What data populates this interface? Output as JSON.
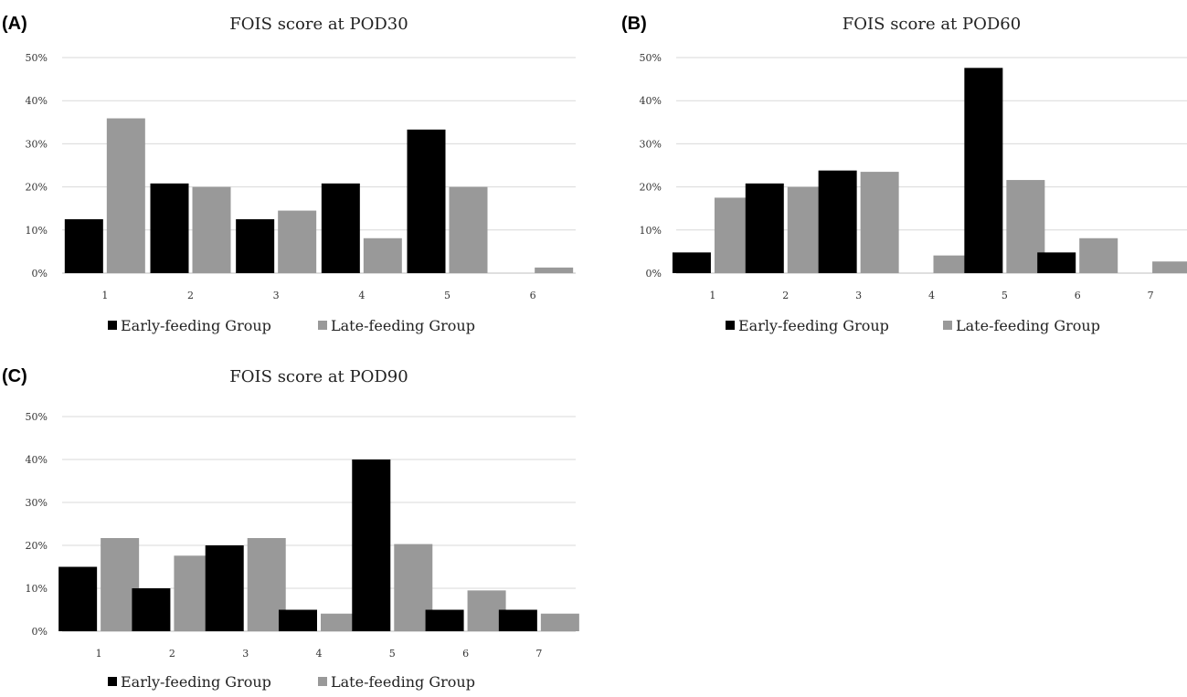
{
  "chart_data": [
    {
      "id": "A",
      "panel_label": "(A)",
      "type": "bar",
      "title": "FOIS score at POD30",
      "categories": [
        "1",
        "2",
        "3",
        "4",
        "5",
        "6"
      ],
      "series": [
        {
          "name": "Early-feeding Group",
          "color": "#000000",
          "values": [
            12.5,
            20.8,
            12.5,
            20.8,
            33.3,
            0
          ]
        },
        {
          "name": "Late-feeding Group",
          "color": "#999999",
          "values": [
            35.9,
            20.0,
            14.5,
            8.1,
            20.0,
            1.3
          ]
        }
      ],
      "ylim": [
        0,
        50
      ],
      "yticks": [
        "0%",
        "10%",
        "20%",
        "30%",
        "40%",
        "50%"
      ],
      "grid": true,
      "legend": "bottom"
    },
    {
      "id": "B",
      "panel_label": "(B)",
      "type": "bar",
      "title": "FOIS score at POD60",
      "categories": [
        "1",
        "2",
        "3",
        "4",
        "5",
        "6",
        "7"
      ],
      "series": [
        {
          "name": "Early-feeding Group",
          "color": "#000000",
          "values": [
            4.8,
            20.8,
            23.8,
            0,
            47.6,
            4.8,
            0
          ]
        },
        {
          "name": "Late-feeding Group",
          "color": "#999999",
          "values": [
            17.5,
            20.0,
            23.5,
            4.1,
            21.6,
            8.1,
            2.7
          ]
        }
      ],
      "ylim": [
        0,
        50
      ],
      "yticks": [
        "0%",
        "10%",
        "20%",
        "30%",
        "40%",
        "50%"
      ],
      "grid": true,
      "legend": "bottom"
    },
    {
      "id": "C",
      "panel_label": "(C)",
      "type": "bar",
      "title": "FOIS score at POD90",
      "categories": [
        "1",
        "2",
        "3",
        "4",
        "5",
        "6",
        "7"
      ],
      "series": [
        {
          "name": "Early-feeding Group",
          "color": "#000000",
          "values": [
            15.0,
            10.0,
            20.0,
            5.0,
            40.0,
            5.0,
            5.0
          ]
        },
        {
          "name": "Late-feeding Group",
          "color": "#999999",
          "values": [
            21.7,
            17.6,
            21.7,
            4.1,
            20.3,
            9.5,
            4.1
          ]
        }
      ],
      "ylim": [
        0,
        50
      ],
      "yticks": [
        "0%",
        "10%",
        "20%",
        "30%",
        "40%",
        "50%"
      ],
      "grid": true,
      "legend": "bottom"
    }
  ]
}
